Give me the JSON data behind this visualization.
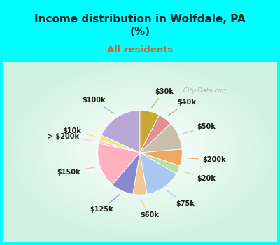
{
  "title": "Income distribution in Wolfdale, PA\n(%)",
  "subtitle": "All residents",
  "title_color": "#1a2a2a",
  "subtitle_color": "#cc6633",
  "figure_bg": "#00ffff",
  "chart_bg": "#d0ede0",
  "labels": [
    "$100k",
    "$10k",
    "> $200k",
    "$150k",
    "$125k",
    "$60k",
    "$75k",
    "$20k",
    "$200k",
    "$50k",
    "$40k",
    "$30k"
  ],
  "values": [
    17,
    2,
    1,
    16,
    8,
    5,
    13,
    3,
    6,
    10,
    5,
    7
  ],
  "colors": [
    "#b8a8d8",
    "#e8e890",
    "#ffcccc",
    "#ffb0c0",
    "#8888cc",
    "#f0c898",
    "#a8c8f0",
    "#b8e0a0",
    "#f0a860",
    "#c8c0aa",
    "#e09090",
    "#c8a830"
  ],
  "start_angle": 90,
  "watermark": "  City-Data.com"
}
